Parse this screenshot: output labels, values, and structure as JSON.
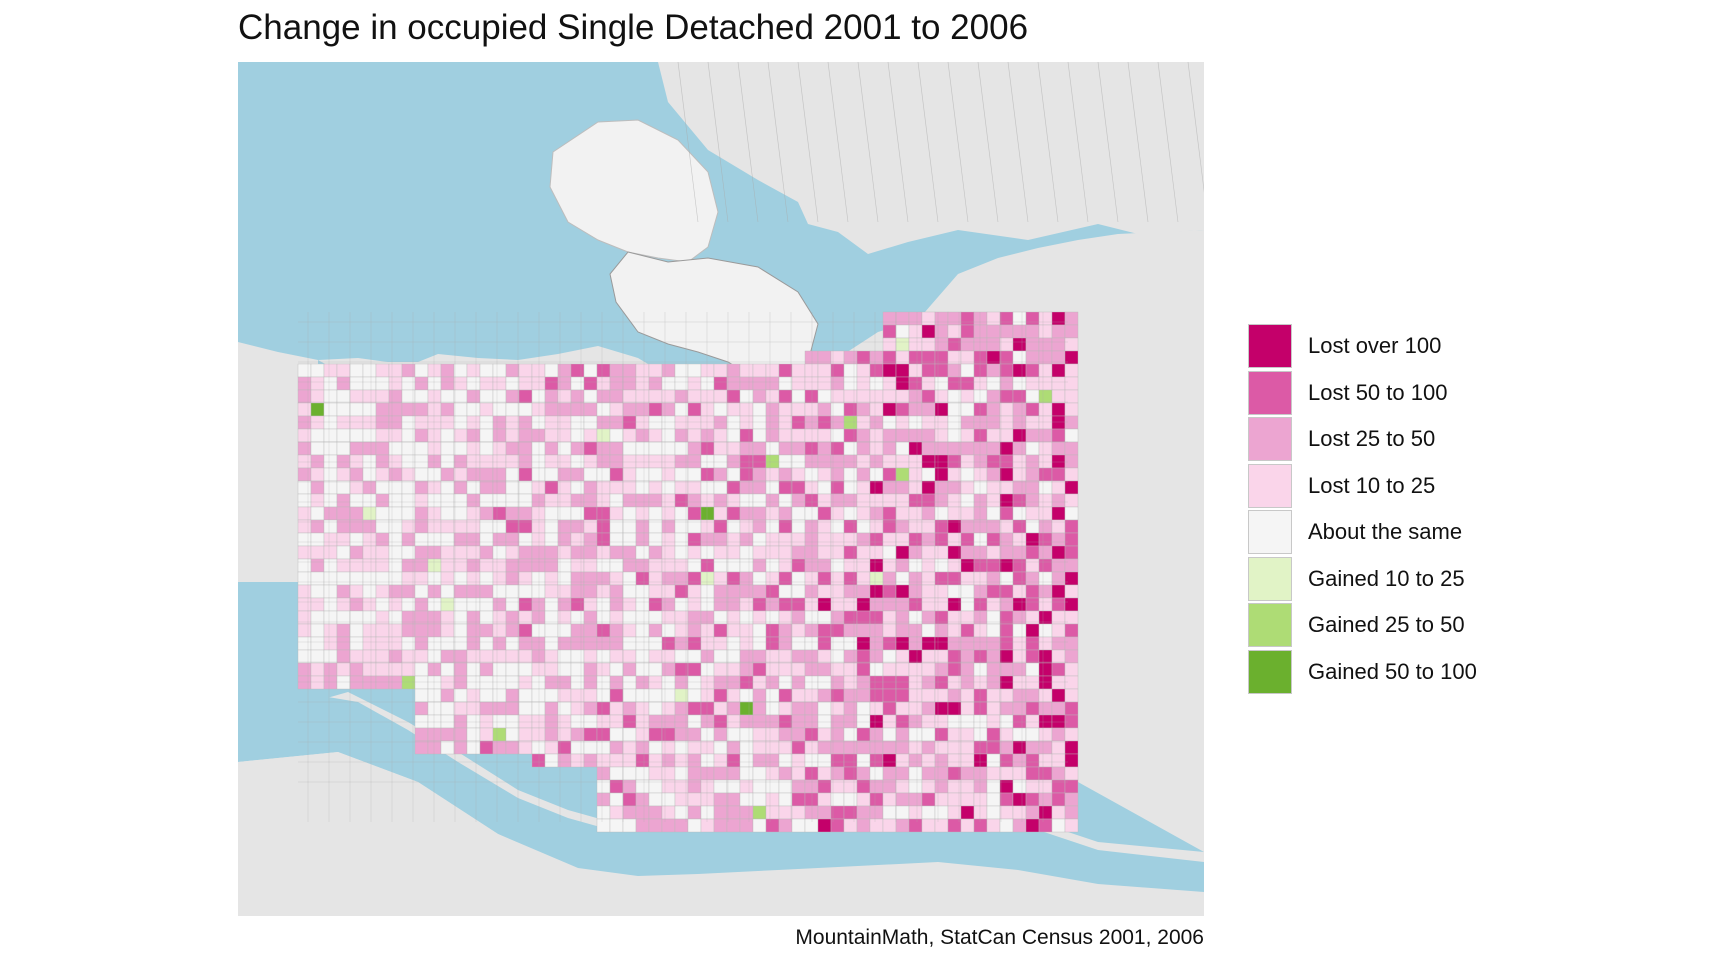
{
  "title": "Change in occupied Single Detached 2001 to 2006",
  "caption": "MountainMath, StatCan Census 2001, 2006",
  "map": {
    "water_color": "#a0cfe0",
    "land_color": "#e5e5e5",
    "urban_color": "#f5f5f5",
    "road_color": "#a9a9a9"
  },
  "legend": [
    {
      "label": "Lost over 100",
      "color": "#c4006a"
    },
    {
      "label": "Lost 50 to 100",
      "color": "#dc5aa6"
    },
    {
      "label": "Lost 25 to 50",
      "color": "#eca5d1"
    },
    {
      "label": "Lost 10 to 25",
      "color": "#fad5ea"
    },
    {
      "label": "About the same",
      "color": "#f5f5f5"
    },
    {
      "label": "Gained 10 to 25",
      "color": "#e1f3c6"
    },
    {
      "label": "Gained 25 to 50",
      "color": "#aedc75"
    },
    {
      "label": "Gained 50 to 100",
      "color": "#6bb02e"
    }
  ]
}
